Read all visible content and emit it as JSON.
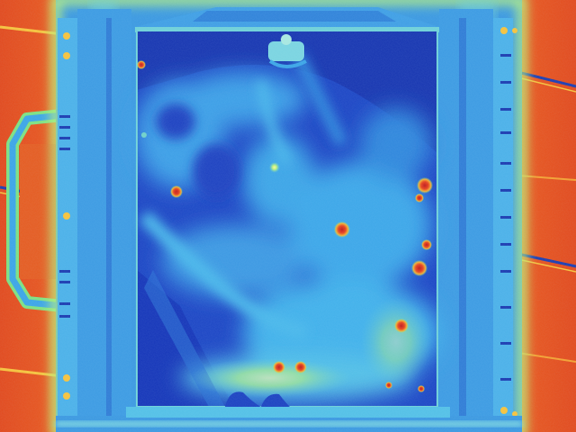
{
  "image": {
    "kind": "thermal-camera-frame",
    "palette": {
      "hot_outer": "#e2471a",
      "hot_edge": "#f07a22",
      "warm_stripe": "#f7c23a",
      "warm_green": "#9ee06a",
      "cool_mid": "#3aa4e6",
      "cool": "#2a78d8",
      "cold": "#1a40c8",
      "cold_deep": "#1230a8",
      "hotspot_core": "#d4201a",
      "hotspot_ring": "#f2b030"
    },
    "hotspots_count": 14
  }
}
